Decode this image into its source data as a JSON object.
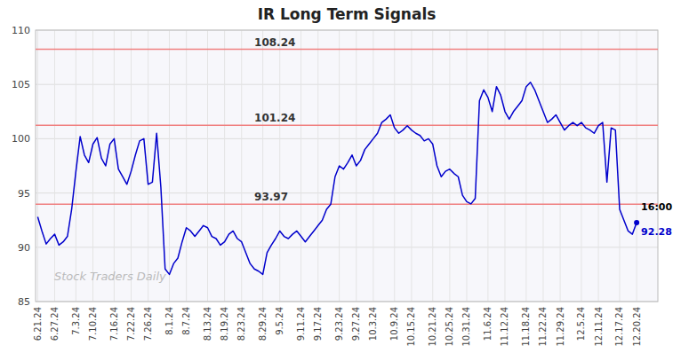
{
  "chart_data": {
    "type": "line",
    "title": "IR Long Term Signals",
    "categories": [
      "6.21.24",
      null,
      null,
      null,
      "6.27.24",
      null,
      null,
      null,
      null,
      "7.3.24",
      null,
      null,
      null,
      "7.10.24",
      null,
      null,
      null,
      null,
      "7.16.24",
      null,
      null,
      null,
      "7.22.24",
      null,
      null,
      null,
      "7.26.24",
      null,
      null,
      null,
      null,
      "8.1.24",
      null,
      null,
      null,
      "8.7.24",
      null,
      null,
      null,
      null,
      "8.13.24",
      null,
      null,
      null,
      "8.19.24",
      null,
      null,
      null,
      "8.23.24",
      null,
      null,
      null,
      null,
      "8.29.24",
      null,
      null,
      null,
      "9.5.24",
      null,
      null,
      null,
      null,
      "9.11.24",
      null,
      null,
      null,
      "9.17.24",
      null,
      null,
      null,
      null,
      "9.23.24",
      null,
      null,
      null,
      "9.27.24",
      null,
      null,
      null,
      "10.3.24",
      null,
      null,
      null,
      null,
      "10.9.24",
      null,
      null,
      null,
      "10.15.24",
      null,
      null,
      null,
      null,
      "10.21.24",
      null,
      null,
      null,
      "10.25.24",
      null,
      null,
      null,
      "10.31.24",
      null,
      null,
      null,
      null,
      "11.6.24",
      null,
      null,
      null,
      "11.12.24",
      null,
      null,
      null,
      null,
      "11.18.24",
      null,
      null,
      null,
      "11.22.24",
      null,
      null,
      null,
      "11.29.24",
      null,
      null,
      null,
      null,
      "12.5.24",
      null,
      null,
      null,
      "12.11.24",
      null,
      null,
      null,
      null,
      "12.17.24",
      null,
      null,
      null,
      "12.20.24"
    ],
    "values": [
      92.8,
      91.5,
      90.3,
      90.8,
      91.2,
      90.2,
      90.5,
      91.0,
      93.5,
      97.0,
      100.2,
      98.5,
      97.8,
      99.5,
      100.1,
      98.2,
      97.5,
      99.5,
      100.0,
      97.2,
      96.5,
      95.8,
      97.0,
      98.5,
      99.8,
      100.0,
      95.8,
      96.0,
      100.5,
      95.5,
      88.0,
      87.5,
      88.5,
      89.0,
      90.5,
      91.8,
      91.5,
      91.0,
      91.5,
      92.0,
      91.8,
      91.0,
      90.8,
      90.2,
      90.5,
      91.2,
      91.5,
      90.8,
      90.5,
      89.5,
      88.5,
      88.0,
      87.8,
      87.5,
      89.5,
      90.2,
      90.8,
      91.5,
      91.0,
      90.8,
      91.2,
      91.5,
      91.0,
      90.5,
      91.0,
      91.5,
      92.0,
      92.5,
      93.5,
      93.97,
      96.5,
      97.5,
      97.2,
      97.8,
      98.5,
      97.5,
      98.0,
      99.0,
      99.5,
      100.0,
      100.5,
      101.5,
      101.8,
      102.2,
      101.0,
      100.5,
      100.8,
      101.2,
      100.8,
      100.5,
      100.3,
      99.8,
      100.0,
      99.5,
      97.5,
      96.5,
      97.0,
      97.2,
      96.8,
      96.5,
      94.8,
      94.2,
      94.0,
      94.5,
      103.5,
      104.5,
      103.8,
      102.5,
      104.8,
      104.0,
      102.5,
      101.8,
      102.5,
      103.0,
      103.5,
      104.8,
      105.2,
      104.5,
      103.5,
      102.5,
      101.5,
      101.8,
      102.2,
      101.5,
      100.8,
      101.2,
      101.5,
      101.2,
      101.5,
      101.0,
      100.8,
      100.5,
      101.2,
      101.5,
      96.0,
      101.0,
      100.8,
      93.5,
      92.5,
      91.5,
      91.2,
      92.28
    ],
    "color": "#0000cc",
    "ylim": [
      85,
      110
    ],
    "yticks": [
      85,
      90,
      95,
      100,
      105,
      110
    ],
    "grid": true,
    "hlines": [
      {
        "value": 108.24,
        "label": "108.24",
        "color": "#f08080"
      },
      {
        "value": 101.24,
        "label": "101.24",
        "color": "#f08080"
      },
      {
        "value": 93.97,
        "label": "93.97",
        "color": "#f08080"
      }
    ],
    "last_point": {
      "time": "16:00",
      "value": 92.28
    },
    "watermark": "Stock Traders Daily"
  }
}
